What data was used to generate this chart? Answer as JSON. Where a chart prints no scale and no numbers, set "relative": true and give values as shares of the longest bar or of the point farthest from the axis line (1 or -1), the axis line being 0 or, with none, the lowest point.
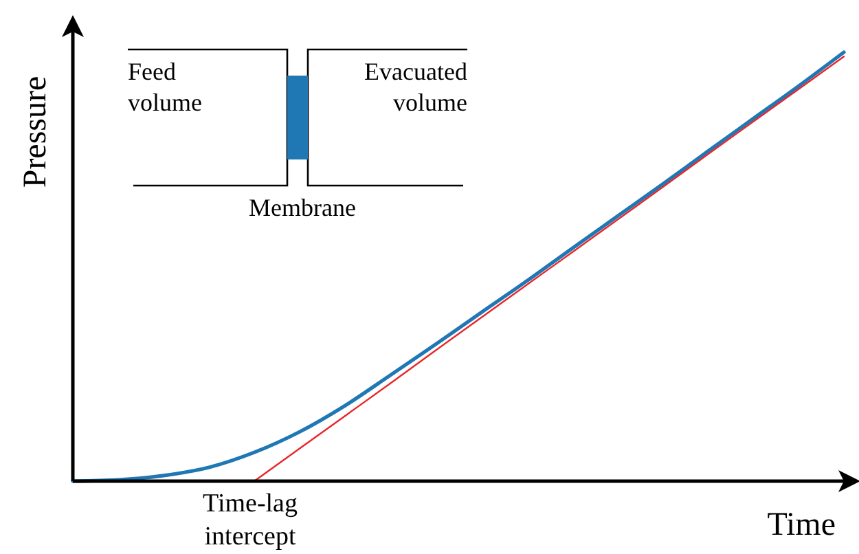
{
  "chart_data": {
    "type": "line",
    "relative": true,
    "xlabel": "Time",
    "ylabel": "Pressure",
    "categories": [
      null,
      null,
      null,
      null,
      null,
      null,
      null,
      null,
      null,
      null,
      null,
      null,
      null,
      null,
      null,
      null,
      null,
      null
    ],
    "series": [
      {
        "color": "#1f77b4",
        "values": [
          0,
          0.003,
          0.013,
          0.032,
          0.067,
          0.115,
          0.176,
          0.247,
          0.319,
          0.393,
          0.466,
          0.542,
          0.617,
          0.692,
          0.769,
          0.845,
          0.921,
          1
        ]
      },
      {
        "color": "#e8262a",
        "values": [
          null,
          null,
          null,
          null,
          0,
          0.076,
          0.152,
          0.228,
          0.305,
          0.381,
          0.457,
          0.533,
          0.609,
          0.685,
          0.762,
          0.838,
          0.914,
          0.99
        ]
      }
    ],
    "annotations": [
      "Time-lag\nintercept",
      "Feed\nvolume",
      "Evacuated\nvolume",
      "Membrane"
    ],
    "marker": "none",
    "line_style": "solid"
  }
}
